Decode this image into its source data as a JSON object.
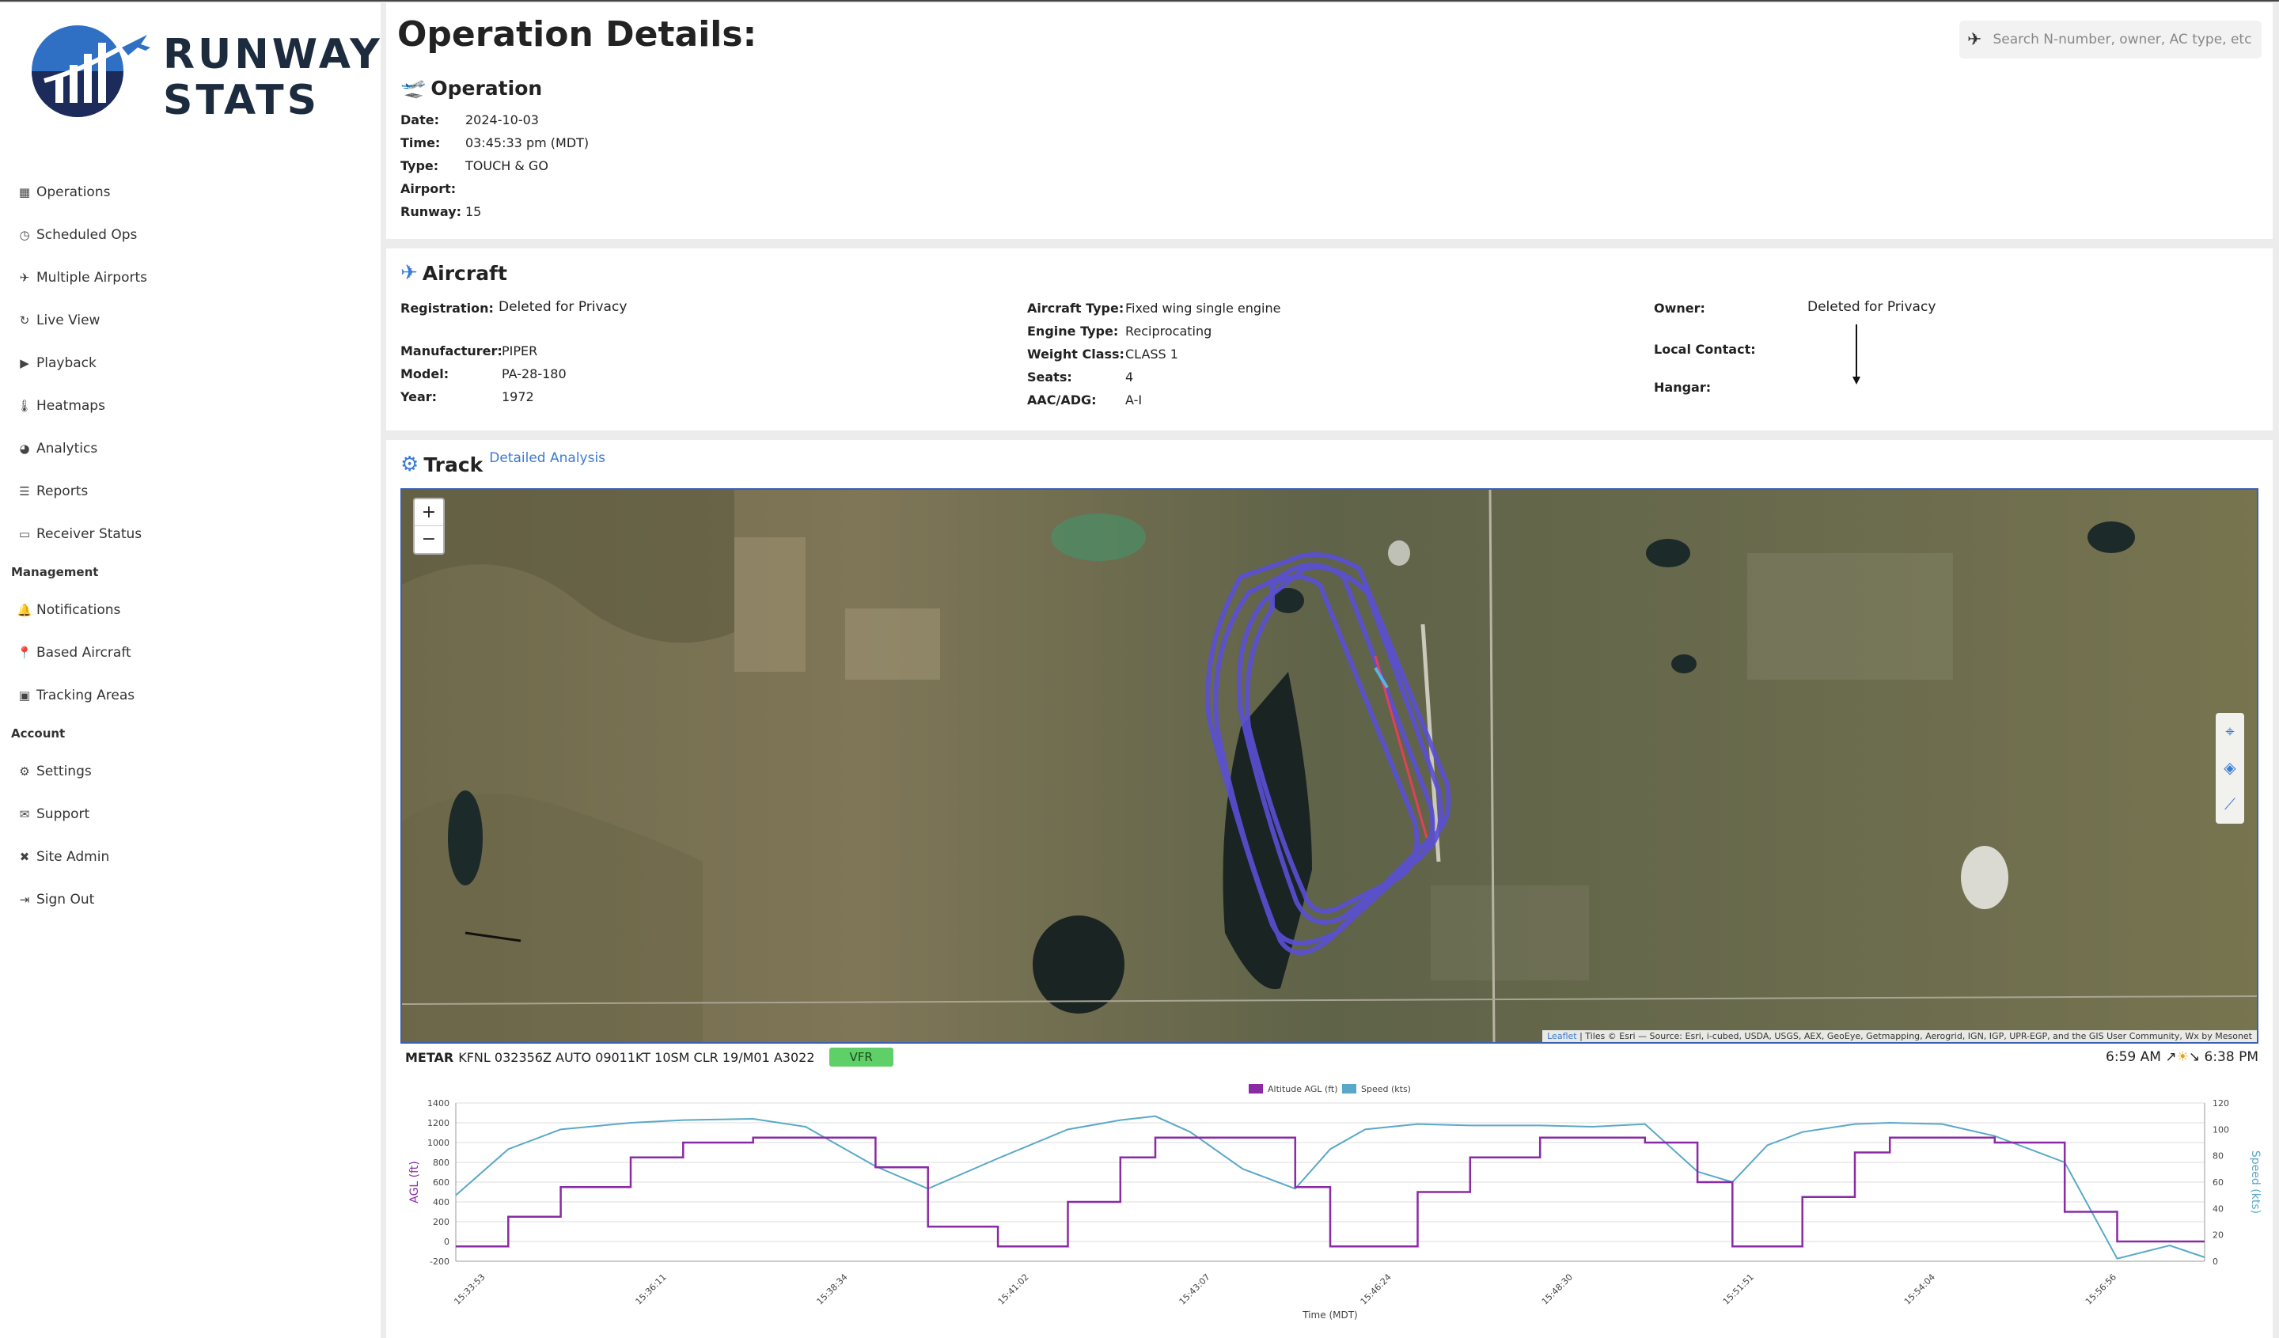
{
  "brand": {
    "line1": "RUNWAY",
    "line2": "STATS"
  },
  "nav": {
    "items": [
      {
        "label": "Operations",
        "icon": "grid-icon"
      },
      {
        "label": "Scheduled Ops",
        "icon": "clock-icon"
      },
      {
        "label": "Multiple Airports",
        "icon": "plane-icon"
      },
      {
        "label": "Live View",
        "icon": "refresh-icon"
      },
      {
        "label": "Playback",
        "icon": "video-icon"
      },
      {
        "label": "Heatmaps",
        "icon": "thermometer-icon"
      },
      {
        "label": "Analytics",
        "icon": "pie-icon"
      },
      {
        "label": "Reports",
        "icon": "list-icon"
      },
      {
        "label": "Receiver Status",
        "icon": "receiver-icon"
      }
    ],
    "management_label": "Management",
    "management": [
      {
        "label": "Notifications",
        "icon": "bell-icon"
      },
      {
        "label": "Based Aircraft",
        "icon": "pin-icon"
      },
      {
        "label": "Tracking Areas",
        "icon": "image-icon"
      }
    ],
    "account_label": "Account",
    "account": [
      {
        "label": "Settings",
        "icon": "gear-icon"
      },
      {
        "label": "Support",
        "icon": "mail-icon"
      },
      {
        "label": "Site Admin",
        "icon": "tools-icon"
      },
      {
        "label": "Sign Out",
        "icon": "signout-icon"
      }
    ]
  },
  "header": {
    "title": "Operation Details:",
    "search_placeholder": "Search N-number, owner, AC type, etc"
  },
  "operation": {
    "heading": "Operation",
    "date_label": "Date:",
    "date": "2024-10-03",
    "time_label": "Time:",
    "time": "03:45:33 pm (MDT)",
    "type_label": "Type:",
    "type": "TOUCH & GO",
    "airport_label": "Airport:",
    "airport": "",
    "runway_label": "Runway:",
    "runway": "15"
  },
  "aircraft": {
    "heading": "Aircraft",
    "registration_label": "Registration:",
    "registration": "Deleted for Privacy",
    "manufacturer_label": "Manufacturer:",
    "manufacturer": "PIPER",
    "model_label": "Model:",
    "model": "PA-28-180",
    "year_label": "Year:",
    "year": "1972",
    "aircraft_type_label": "Aircraft Type:",
    "aircraft_type": "Fixed wing single engine",
    "engine_type_label": "Engine Type:",
    "engine_type": "Reciprocating",
    "weight_class_label": "Weight Class:",
    "weight_class": "CLASS 1",
    "seats_label": "Seats:",
    "seats": "4",
    "aac_label": "AAC/ADG:",
    "aac": "A-I",
    "owner_label": "Owner:",
    "owner": "Deleted for Privacy",
    "local_contact_label": "Local Contact:",
    "hangar_label": "Hangar:"
  },
  "track": {
    "heading": "Track",
    "link": "Detailed Analysis",
    "zoom_in": "+",
    "zoom_out": "−",
    "attribution_leaflet": "Leaflet",
    "attribution": "| Tiles © Esri — Source: Esri, i-cubed, USDA, USGS, AEX, GeoEye, Getmapping, Aerogrid, IGN, IGP, UPR-EGP, and the GIS User Community, Wx by Mesonet",
    "metar_label": "METAR",
    "metar": "KFNL 032356Z AUTO 09011KT 10SM CLR 19/M01 A3022",
    "flight_category": "VFR",
    "sunrise": "6:59 AM",
    "sunset": "6:38 PM"
  },
  "colors": {
    "altitude": "#8a2aa5",
    "speed": "#5aa8c8",
    "accent": "#3a7bd5"
  },
  "chart_data": {
    "type": "line",
    "legend": [
      "Altitude AGL (ft)",
      "Speed (kts)"
    ],
    "xlabel": "Time (MDT)",
    "ylabel": "AGL (ft)",
    "y2label": "Speed (kts)",
    "ylim": [
      -200,
      1400
    ],
    "y2lim": [
      0,
      120
    ],
    "yticks": [
      1400,
      1200,
      1000,
      800,
      600,
      400,
      200,
      0,
      -200
    ],
    "y2ticks": [
      120,
      100,
      80,
      60,
      40,
      20,
      0
    ],
    "x_ticks": [
      "15:33:53",
      "15:36:11",
      "15:38:34",
      "15:41:02",
      "15:43:07",
      "15:46:24",
      "15:48:30",
      "15:51:51",
      "15:54:04",
      "15:56:56"
    ],
    "t": [
      0,
      3,
      6,
      10,
      13,
      17,
      20,
      24,
      27,
      31,
      35,
      38,
      40,
      42,
      45,
      48,
      50,
      52,
      55,
      58,
      62,
      65,
      68,
      71,
      73,
      75,
      77,
      80,
      82,
      85,
      88,
      92,
      95,
      98,
      100
    ],
    "series": [
      {
        "name": "Altitude AGL (ft)",
        "values": [
          -50,
          250,
          550,
          850,
          1000,
          1050,
          1050,
          750,
          150,
          -50,
          400,
          850,
          1050,
          1050,
          1050,
          550,
          -50,
          -50,
          500,
          850,
          1050,
          1050,
          1000,
          600,
          -50,
          -50,
          450,
          900,
          1050,
          1050,
          1000,
          300,
          0,
          0,
          0
        ]
      },
      {
        "name": "Speed (kts)",
        "values": [
          50,
          85,
          100,
          105,
          107,
          108,
          102,
          72,
          55,
          78,
          100,
          107,
          110,
          98,
          70,
          55,
          85,
          100,
          104,
          103,
          103,
          102,
          104,
          68,
          60,
          88,
          98,
          104,
          105,
          104,
          95,
          75,
          2,
          12,
          3
        ]
      }
    ]
  }
}
